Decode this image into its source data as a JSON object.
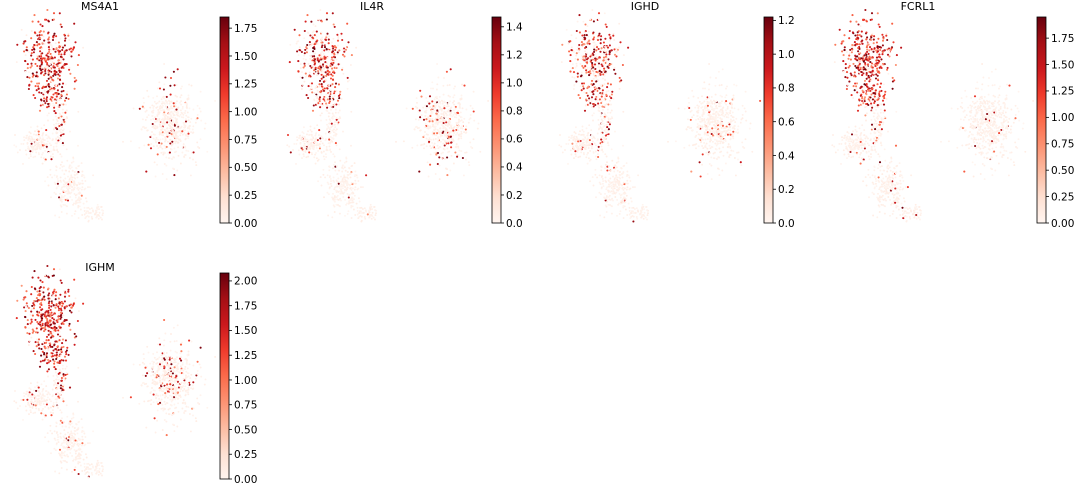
{
  "figure": {
    "type": "umap-embedding-scatter",
    "cmap_name": "Reds",
    "colormap": [
      "#fff5f0",
      "#fee0d2",
      "#fcbba1",
      "#fc9272",
      "#fb6a4a",
      "#ef3b2c",
      "#cb181d",
      "#a50f15",
      "#67000d"
    ],
    "background_color": "#ffffff"
  },
  "chart_data": [
    {
      "type": "scatter",
      "title": "MS4A1",
      "color_range": [
        0.0,
        1.85
      ],
      "colorbar_ticks": [
        "0.00",
        "0.25",
        "0.50",
        "0.75",
        "1.00",
        "1.25",
        "1.50",
        "1.75"
      ],
      "axes_visible": false,
      "legend": "colorbar-right"
    },
    {
      "type": "scatter",
      "title": "IL4R",
      "color_range": [
        0.0,
        1.47
      ],
      "colorbar_ticks": [
        "0.0",
        "0.2",
        "0.4",
        "0.6",
        "0.8",
        "1.0",
        "1.2",
        "1.4"
      ],
      "axes_visible": false,
      "legend": "colorbar-right"
    },
    {
      "type": "scatter",
      "title": "IGHD",
      "color_range": [
        0.0,
        1.22
      ],
      "colorbar_ticks": [
        "0.0",
        "0.2",
        "0.4",
        "0.6",
        "0.8",
        "1.0",
        "1.2"
      ],
      "axes_visible": false,
      "legend": "colorbar-right"
    },
    {
      "type": "scatter",
      "title": "FCRL1",
      "color_range": [
        0.0,
        1.95
      ],
      "colorbar_ticks": [
        "0.00",
        "0.25",
        "0.50",
        "0.75",
        "1.00",
        "1.25",
        "1.50",
        "1.75"
      ],
      "axes_visible": false,
      "legend": "colorbar-right"
    },
    {
      "type": "scatter",
      "title": "IGHM",
      "color_range": [
        0.0,
        2.08
      ],
      "colorbar_ticks": [
        "0.00",
        "0.25",
        "0.50",
        "0.75",
        "1.00",
        "1.25",
        "1.50",
        "1.75",
        "2.00"
      ],
      "axes_visible": false,
      "legend": "colorbar-right"
    }
  ]
}
